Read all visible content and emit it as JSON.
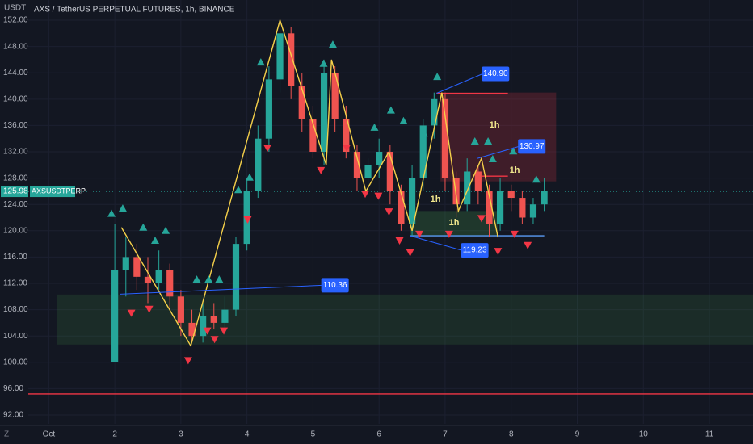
{
  "chart_data": {
    "type": "candlestick",
    "title": "AXS / TetherUS PERPETUAL FUTURES, 1h, BINANCE",
    "y_axis_label": "USDT",
    "ylim": [
      90.65,
      155.07
    ],
    "yticks": [
      {
        "value": 92,
        "label": "92.00"
      },
      {
        "value": 96,
        "label": "96.00"
      },
      {
        "value": 100,
        "label": "100.00"
      },
      {
        "value": 104,
        "label": "104.00"
      },
      {
        "value": 108,
        "label": "108.00"
      },
      {
        "value": 112,
        "label": "112.00"
      },
      {
        "value": 116,
        "label": "116.00"
      },
      {
        "value": 120,
        "label": "120.00"
      },
      {
        "value": 124,
        "label": "124.00"
      },
      {
        "value": 128,
        "label": "128.00"
      },
      {
        "value": 132,
        "label": "132.00"
      },
      {
        "value": 136,
        "label": "136.00"
      },
      {
        "value": 140,
        "label": "140.00"
      },
      {
        "value": 144,
        "label": "144.00"
      },
      {
        "value": 148,
        "label": "148.00"
      },
      {
        "value": 152,
        "label": "152.00"
      }
    ],
    "xlim": [
      0.69,
      11.66
    ],
    "xticks": [
      {
        "value": 1,
        "label": "Oct"
      },
      2,
      3,
      4,
      5,
      6,
      7,
      8,
      9,
      10,
      11
    ],
    "up_color": "#26a69a",
    "down_color": "#ef5350",
    "candles": {
      "x": [
        2.0,
        2.167,
        2.333,
        2.5,
        2.667,
        2.833,
        3.0,
        3.167,
        3.333,
        3.5,
        3.667,
        3.833,
        4.0,
        4.167,
        4.333,
        4.5,
        4.667,
        4.833,
        5.0,
        5.167,
        5.333,
        5.5,
        5.667,
        5.833,
        6.0,
        6.167,
        6.333,
        6.5,
        6.667,
        6.833,
        7.0,
        7.167,
        7.333,
        7.5,
        7.667,
        7.833,
        8.0,
        8.167,
        8.333,
        8.5
      ],
      "open": [
        100,
        114,
        116,
        113,
        112,
        114,
        110,
        106,
        104,
        107,
        106,
        108,
        118,
        126,
        134,
        143,
        150,
        142,
        137,
        132,
        144,
        137,
        132,
        128,
        130,
        132,
        126,
        121,
        128,
        136,
        140,
        128,
        124,
        129,
        126,
        121,
        126,
        125,
        122,
        124
      ],
      "high": [
        121,
        119,
        118,
        116,
        117,
        115,
        111,
        108,
        109,
        109,
        110,
        119,
        128,
        136,
        145,
        152,
        151,
        144,
        139,
        146,
        145,
        139,
        133,
        131,
        134,
        133,
        127,
        130,
        137,
        141,
        141,
        129,
        131,
        130,
        127,
        128,
        127,
        126,
        125,
        128
      ],
      "low": [
        100,
        110,
        111,
        109,
        111,
        108,
        104,
        103,
        103,
        105,
        105,
        107,
        117,
        125,
        132,
        141,
        140,
        135,
        131,
        130,
        135,
        131,
        126,
        126,
        128,
        124,
        120,
        119,
        126,
        134,
        126,
        122,
        123,
        124,
        119,
        120,
        123,
        121,
        121,
        123
      ],
      "close": [
        114,
        116,
        113,
        112,
        114,
        110,
        106,
        104,
        107,
        106,
        108,
        118,
        126,
        134,
        143,
        150,
        142,
        137,
        132,
        144,
        137,
        132,
        128,
        130,
        132,
        126,
        121,
        128,
        136,
        140,
        128,
        124,
        129,
        126,
        121,
        126,
        125,
        122,
        124,
        126
      ]
    },
    "zigzag": {
      "color": "#f5d04a",
      "x": [
        2.1,
        3.15,
        4.5,
        5.2,
        5.28,
        5.8,
        6.15,
        6.5,
        6.95,
        7.2,
        7.55,
        7.8
      ],
      "y": [
        120.5,
        102.5,
        152,
        130,
        146,
        126,
        132,
        120,
        141,
        123,
        131,
        119
      ]
    },
    "buy_signals": {
      "color": "#26a69a",
      "x": [
        1.95,
        2.12,
        2.43,
        2.61,
        2.77,
        3.24,
        3.42,
        3.58,
        3.87,
        4.04,
        4.21,
        5.16,
        5.3,
        5.93,
        6.18,
        6.37,
        6.68,
        6.88,
        7.45,
        7.65,
        7.72,
        8.03,
        8.38
      ],
      "y": [
        122.6,
        123.4,
        120.5,
        118.5,
        120.0,
        112.6,
        112.6,
        112.6,
        126.2,
        128.1,
        145.6,
        145.4,
        148.3,
        135.7,
        138.3,
        136.7,
        134.8,
        143.4,
        133.6,
        133.6,
        130.9,
        132.1,
        127.8
      ]
    },
    "sell_signals": {
      "color": "#f23645",
      "x": [
        2.25,
        2.52,
        3.11,
        3.4,
        3.51,
        3.65,
        4.01,
        4.31,
        5.12,
        5.51,
        5.79,
        5.99,
        6.15,
        6.31,
        6.47,
        6.61,
        7.06,
        7.55,
        7.8,
        8.05,
        8.25
      ],
      "y": [
        107.5,
        108.1,
        100.3,
        104.8,
        103.5,
        104.8,
        121.7,
        132.6,
        129.2,
        132.6,
        125.6,
        125.3,
        122.9,
        118.5,
        116.7,
        119.5,
        119.5,
        121.9,
        116.9,
        119.5,
        117.8
      ]
    },
    "zones": [
      {
        "x": [
          1.12,
          11.66
        ],
        "y": [
          102.7,
          110.3
        ],
        "color": "rgba(76,175,80,0.14)"
      },
      {
        "x": [
          6.93,
          8.68
        ],
        "y": [
          127.5,
          141
        ],
        "color": "rgba(242,54,69,0.20)"
      },
      {
        "x": [
          6.47,
          7.8
        ],
        "y": [
          119.2,
          123
        ],
        "color": "rgba(76,175,80,0.22)"
      }
    ],
    "levels": [
      {
        "value": 95.2,
        "x": [
          0.69,
          11.66
        ],
        "color": "#f23645"
      },
      {
        "value": 140.9,
        "x": [
          6.87,
          7.95
        ],
        "color": "#f23645"
      },
      {
        "value": 128.3,
        "x": [
          7.55,
          7.95
        ],
        "color": "#f23645"
      },
      {
        "value": 119.23,
        "x": [
          6.47,
          8.5
        ],
        "color": "#5b9cf6"
      }
    ],
    "callouts": [
      {
        "value": 140.9,
        "label": "140.90",
        "x": 6.87
      },
      {
        "value": 130.97,
        "label": "130.97",
        "x": 7.48
      },
      {
        "value": 119.23,
        "label": "119.23",
        "x": 6.47
      },
      {
        "value": 110.36,
        "label": "110.36",
        "x": 2.08
      }
    ],
    "timeframe_labels": [
      "1h",
      "1h",
      "1h",
      "1h"
    ],
    "last_price": {
      "value": 125.98,
      "label": "125.98",
      "symbol": "AXSUSDTPERP"
    }
  }
}
